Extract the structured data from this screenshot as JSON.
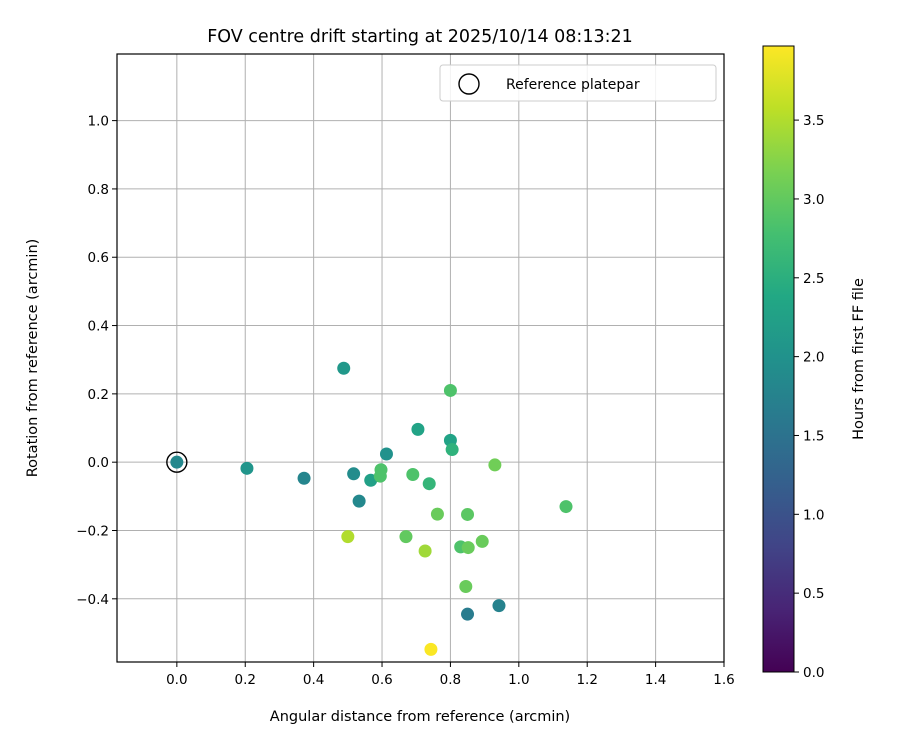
{
  "chart_data": {
    "type": "scatter",
    "title": "FOV centre drift starting at 2025/10/14 08:13:21",
    "xlabel": "Angular distance from reference (arcmin)",
    "ylabel": "Rotation from reference (arcmin)",
    "xlim": [
      -0.175,
      1.6
    ],
    "ylim": [
      -0.585,
      1.195
    ],
    "xticks": [
      0.0,
      0.2,
      0.4,
      0.6,
      0.8,
      1.0,
      1.2,
      1.4,
      1.6
    ],
    "yticks": [
      -0.4,
      -0.2,
      0.0,
      0.2,
      0.4,
      0.6,
      0.8,
      1.0
    ],
    "xtick_labels": [
      "0.0",
      "0.2",
      "0.4",
      "0.6",
      "0.8",
      "1.0",
      "1.2",
      "1.4",
      "1.6"
    ],
    "ytick_labels": [
      "−0.4",
      "−0.2",
      "0.0",
      "0.2",
      "0.4",
      "0.6",
      "0.8",
      "1.0"
    ],
    "grid": true,
    "legend": {
      "position": "upper-right",
      "entries": [
        "Reference platepar"
      ]
    },
    "reference_point": {
      "x": 0.0,
      "y": 0.0,
      "label": "Reference platepar"
    },
    "colorbar": {
      "label": "Hours from first FF file",
      "range": [
        0.0,
        3.97
      ],
      "ticks": [
        0.0,
        0.5,
        1.0,
        1.5,
        2.0,
        2.5,
        3.0,
        3.5
      ],
      "tick_labels": [
        "0.0",
        "0.5",
        "1.0",
        "1.5",
        "2.0",
        "2.5",
        "3.0",
        "3.5"
      ],
      "colormap": "viridis"
    },
    "points": [
      {
        "x": 0.0,
        "y": 0.0,
        "hours": 1.85
      },
      {
        "x": 0.205,
        "y": -0.018,
        "hours": 2.05
      },
      {
        "x": 0.372,
        "y": -0.047,
        "hours": 1.8
      },
      {
        "x": 0.488,
        "y": 0.275,
        "hours": 2.1
      },
      {
        "x": 0.517,
        "y": -0.034,
        "hours": 1.9
      },
      {
        "x": 0.533,
        "y": -0.114,
        "hours": 1.85
      },
      {
        "x": 0.567,
        "y": -0.053,
        "hours": 2.25
      },
      {
        "x": 0.595,
        "y": -0.041,
        "hours": 2.85
      },
      {
        "x": 0.597,
        "y": -0.022,
        "hours": 2.85
      },
      {
        "x": 0.613,
        "y": 0.024,
        "hours": 2.0
      },
      {
        "x": 0.69,
        "y": -0.036,
        "hours": 2.85
      },
      {
        "x": 0.705,
        "y": 0.096,
        "hours": 2.3
      },
      {
        "x": 0.738,
        "y": -0.063,
        "hours": 2.6
      },
      {
        "x": 0.8,
        "y": 0.21,
        "hours": 2.85
      },
      {
        "x": 0.8,
        "y": 0.064,
        "hours": 2.3
      },
      {
        "x": 0.805,
        "y": 0.037,
        "hours": 2.55
      },
      {
        "x": 0.93,
        "y": -0.008,
        "hours": 3.1
      },
      {
        "x": 0.762,
        "y": -0.152,
        "hours": 3.05
      },
      {
        "x": 0.85,
        "y": -0.153,
        "hours": 2.95
      },
      {
        "x": 1.138,
        "y": -0.13,
        "hours": 2.85
      },
      {
        "x": 0.5,
        "y": -0.218,
        "hours": 3.5
      },
      {
        "x": 0.67,
        "y": -0.218,
        "hours": 3.0
      },
      {
        "x": 0.726,
        "y": -0.26,
        "hours": 3.4
      },
      {
        "x": 0.83,
        "y": -0.248,
        "hours": 2.85
      },
      {
        "x": 0.852,
        "y": -0.25,
        "hours": 3.05
      },
      {
        "x": 0.893,
        "y": -0.232,
        "hours": 3.05
      },
      {
        "x": 0.845,
        "y": -0.364,
        "hours": 3.05
      },
      {
        "x": 0.85,
        "y": -0.445,
        "hours": 1.65
      },
      {
        "x": 0.942,
        "y": -0.42,
        "hours": 1.75
      },
      {
        "x": 0.743,
        "y": -0.548,
        "hours": 3.95
      }
    ]
  }
}
